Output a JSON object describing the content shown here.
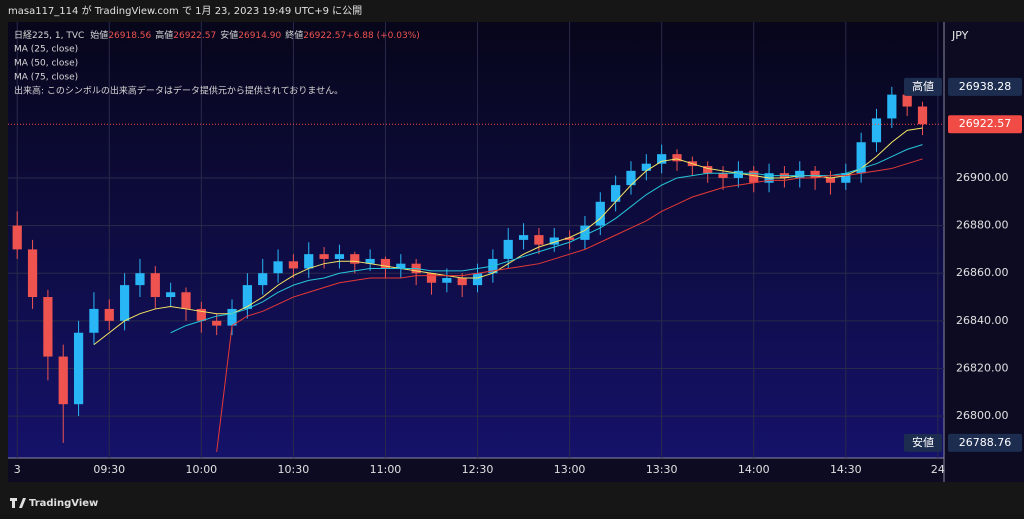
{
  "header": {
    "author": "masa117_114",
    "published": "が TradingView.com で 1月 23, 2023 19:49 UTC+9 に公開"
  },
  "footer": {
    "brand": "TradingView"
  },
  "chart_data": {
    "type": "candlestick",
    "symbol": "日経225, 1, TVC",
    "ohlc_legend": [
      {
        "label": "始値",
        "value": "26918.56"
      },
      {
        "label": "高値",
        "value": "26922.57"
      },
      {
        "label": "安値",
        "value": "26914.90"
      },
      {
        "label": "終値",
        "value": "26922.57"
      },
      {
        "label": "",
        "value": "+6.88 (+0.03%)"
      }
    ],
    "volume_note": "出来高: このシンボルの出来高データはデータ提供元から提供されておりません。",
    "currency": "JPY",
    "up_color": "#29b6f6",
    "down_color": "#ef5350",
    "grid": true,
    "x": [
      0,
      5,
      10,
      15,
      20,
      25,
      30,
      35,
      40,
      45,
      50,
      55,
      60,
      65,
      70,
      75,
      80,
      85,
      90,
      95,
      100,
      105,
      110,
      115,
      120,
      125,
      130,
      135,
      140,
      145,
      150,
      155,
      160,
      165,
      170,
      175,
      180,
      185,
      190,
      195,
      200,
      205,
      210,
      215,
      220,
      225,
      230,
      235,
      240,
      245,
      250,
      255,
      260,
      265,
      270,
      275,
      280,
      285,
      290,
      295
    ],
    "open": [
      26880,
      26870,
      26850,
      26825,
      26805,
      26835,
      26845,
      26840,
      26855,
      26860,
      26850,
      26852,
      26845,
      26840,
      26838,
      26845,
      26855,
      26860,
      26865,
      26862,
      26868,
      26866,
      26868,
      26864,
      26866,
      26862,
      26864,
      26860,
      26856,
      26858,
      26855,
      26860,
      26866,
      26874,
      26876,
      26872,
      26875,
      26874,
      26880,
      26890,
      26897,
      26903,
      26906,
      26910,
      26907,
      26905,
      26902,
      26900,
      26903,
      26898,
      26902,
      26900,
      26903,
      26900,
      26898,
      26902,
      26915,
      26925,
      26935,
      26930
    ],
    "close": [
      26870,
      26850,
      26825,
      26805,
      26835,
      26845,
      26840,
      26855,
      26860,
      26850,
      26852,
      26845,
      26840,
      26838,
      26845,
      26855,
      26860,
      26865,
      26862,
      26868,
      26866,
      26868,
      26864,
      26866,
      26862,
      26864,
      26860,
      26856,
      26858,
      26855,
      26860,
      26866,
      26874,
      26876,
      26872,
      26875,
      26874,
      26880,
      26890,
      26897,
      26903,
      26906,
      26910,
      26907,
      26905,
      26902,
      26900,
      26903,
      26898,
      26902,
      26900,
      26903,
      26900,
      26898,
      26902,
      26915,
      26925,
      26935,
      26930,
      26922.57
    ],
    "high": [
      26886,
      26874,
      26853,
      26830,
      26840,
      26852,
      26849,
      26860,
      26866,
      26863,
      26856,
      26854,
      26848,
      26843,
      26849,
      26860,
      26866,
      26870,
      26868,
      26873,
      26871,
      26872,
      26869,
      26870,
      26867,
      26868,
      26866,
      26860,
      26862,
      26860,
      26864,
      26870,
      26879,
      26881,
      26879,
      26879,
      26878,
      26884,
      26894,
      26901,
      26907,
      26910,
      26914,
      26912,
      26909,
      26907,
      26905,
      26907,
      26905,
      26906,
      26905,
      26907,
      26905,
      26903,
      26906,
      26919,
      26929,
      26938.28,
      26936,
      26932
    ],
    "low": [
      26866,
      26845,
      26815,
      26788.76,
      26800,
      26830,
      26836,
      26836,
      26850,
      26845,
      26846,
      26840,
      26835,
      26834,
      26834,
      26841,
      26851,
      26856,
      26858,
      26858,
      26862,
      26862,
      26860,
      26861,
      26858,
      26858,
      26855,
      26851,
      26852,
      26850,
      26852,
      26856,
      26862,
      26870,
      26868,
      26869,
      26870,
      26870,
      26876,
      26886,
      26893,
      26899,
      26902,
      26903,
      26901,
      26898,
      26895,
      26896,
      26894,
      26894,
      26896,
      26896,
      26895,
      26893,
      26895,
      26898,
      26911,
      26921,
      26926,
      26918
    ],
    "series": [
      {
        "name": "MA (25, close)",
        "color": "#f5e663",
        "values": [
          null,
          null,
          null,
          null,
          null,
          26830,
          26835,
          26840,
          26843,
          26845,
          26846,
          26845,
          26844,
          26843,
          26843,
          26846,
          26850,
          26855,
          26859,
          26862,
          26864,
          26865,
          26865,
          26864,
          26863,
          26862,
          26861,
          26860,
          26859,
          26858,
          26858,
          26860,
          26864,
          26868,
          26871,
          26873,
          26875,
          26878,
          26883,
          26890,
          26897,
          26903,
          26907,
          26908,
          26906,
          26904,
          26903,
          26902,
          26901,
          26900,
          26900,
          26901,
          26901,
          26900,
          26901,
          26904,
          26909,
          26915,
          26920,
          26921
        ]
      },
      {
        "name": "MA (50, close)",
        "color": "#26c6da",
        "values": [
          null,
          null,
          null,
          null,
          null,
          null,
          null,
          null,
          null,
          null,
          26835,
          26838,
          26840,
          26842,
          26843,
          26845,
          26848,
          26852,
          26855,
          26857,
          26858,
          26860,
          26861,
          26862,
          26862,
          26862,
          26862,
          26861,
          26861,
          26861,
          26862,
          26863,
          26865,
          26867,
          26869,
          26871,
          26873,
          26876,
          26879,
          26883,
          26888,
          26893,
          26897,
          26900,
          26901,
          26902,
          26902,
          26902,
          26902,
          26901,
          26901,
          26901,
          26901,
          26901,
          26902,
          26904,
          26906,
          26909,
          26912,
          26914
        ]
      },
      {
        "name": "MA (75, close)",
        "color": "#e53935",
        "values": [
          null,
          null,
          null,
          null,
          null,
          null,
          null,
          null,
          null,
          null,
          null,
          null,
          null,
          26785,
          26838,
          26842,
          26844,
          26847,
          26850,
          26852,
          26854,
          26856,
          26857,
          26858,
          26858,
          26858,
          26859,
          26859,
          26859,
          26859,
          26860,
          26861,
          26862,
          26863,
          26864,
          26866,
          26868,
          26870,
          26873,
          26876,
          26879,
          26882,
          26886,
          26889,
          26892,
          26894,
          26896,
          26897,
          26898,
          26899,
          26899,
          26900,
          26900,
          26901,
          26901,
          26902,
          26903,
          26904,
          26906,
          26908
        ]
      }
    ],
    "xlim": [
      -3,
      302
    ],
    "xticks": [
      {
        "value": 0,
        "label": "3"
      },
      {
        "value": 30,
        "label": "09:30"
      },
      {
        "value": 60,
        "label": "10:00"
      },
      {
        "value": 90,
        "label": "10:30"
      },
      {
        "value": 120,
        "label": "11:00"
      },
      {
        "value": 150,
        "label": "12:30"
      },
      {
        "value": 180,
        "label": "13:00"
      },
      {
        "value": 210,
        "label": "13:30"
      },
      {
        "value": 240,
        "label": "14:00"
      },
      {
        "value": 270,
        "label": "14:30"
      },
      {
        "value": 300,
        "label": "24"
      }
    ],
    "ylim": [
      26782.4,
      26965.5
    ],
    "yticks": [
      {
        "value": 26800,
        "label": "26800.00"
      },
      {
        "value": 26820,
        "label": "26820.00"
      },
      {
        "value": 26840,
        "label": "26840.00"
      },
      {
        "value": 26860,
        "label": "26860.00"
      },
      {
        "value": 26880,
        "label": "26880.00"
      },
      {
        "value": 26900,
        "label": "26900.00"
      }
    ],
    "price_labels": [
      {
        "label": "高値",
        "value": 26938.28,
        "color": "#1c2d50"
      },
      {
        "label": "安値",
        "value": 26788.76,
        "color": "#1c2d50"
      }
    ],
    "last_price": {
      "value": 26922.57,
      "color": "#f04b45"
    }
  }
}
